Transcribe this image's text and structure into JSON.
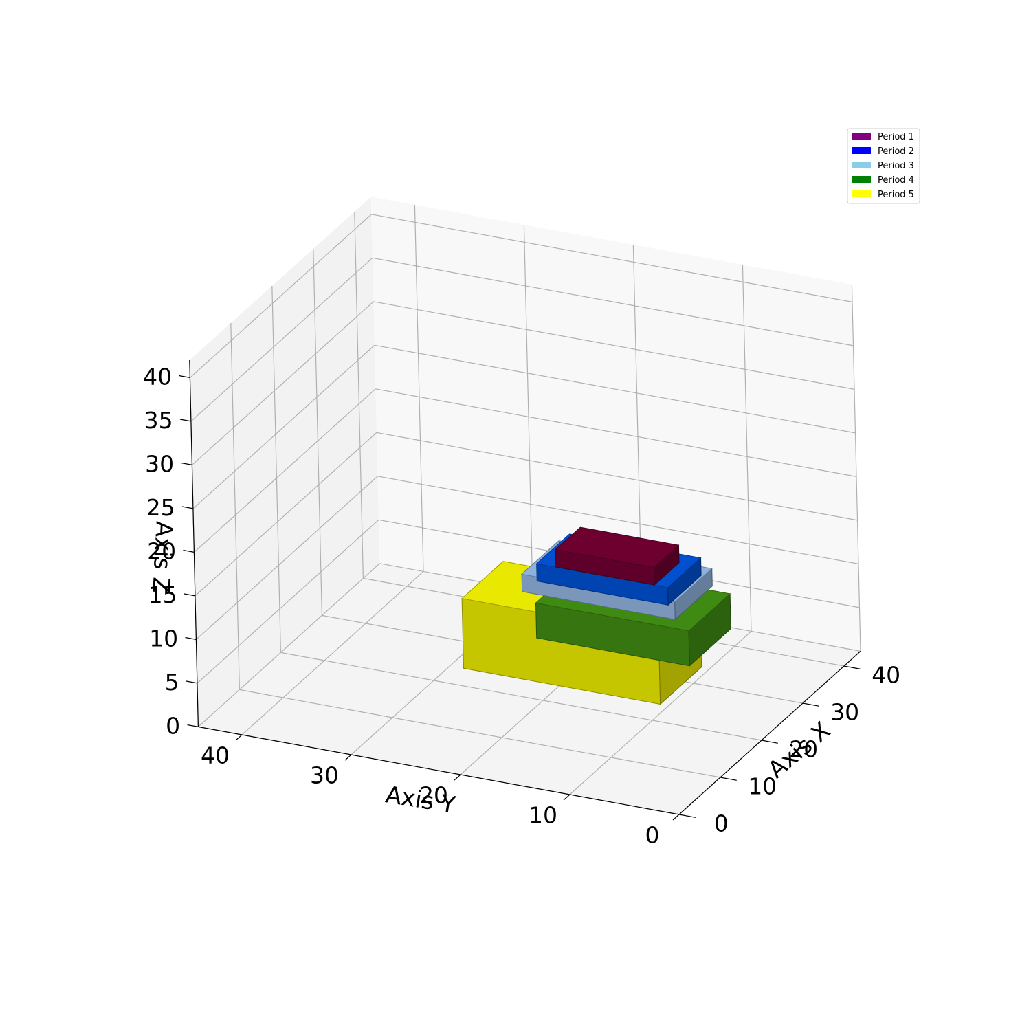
{
  "chart_data": {
    "type": "voxel3d",
    "title": "",
    "xlabel": "Axis X",
    "ylabel": "Axis Y",
    "zlabel": "Axis Z",
    "xlim": [
      0,
      44
    ],
    "ylim": [
      0,
      44
    ],
    "zlim": [
      0,
      42
    ],
    "x_ticks": [
      0,
      10,
      20,
      30,
      40
    ],
    "y_ticks": [
      0,
      10,
      20,
      30,
      40
    ],
    "z_ticks": [
      0,
      5,
      10,
      15,
      20,
      25,
      30,
      35,
      40
    ],
    "grid": true,
    "legend_position": "top-right",
    "legend": [
      {
        "label": "Period 1",
        "color": "#800080"
      },
      {
        "label": "Period 2",
        "color": "#0000ff"
      },
      {
        "label": "Period 3",
        "color": "#87ceeb"
      },
      {
        "label": "Period 4",
        "color": "#008000"
      },
      {
        "label": "Period 5",
        "color": "#ffff00"
      }
    ],
    "voxel_colors": {
      "Period 1": "#6e0030",
      "Period 2": "#0050d0",
      "Period 3": "#8fb2dc",
      "Period 4": "#3f8a12",
      "Period 5": "#e8e800"
    },
    "voxels": [
      {
        "period": "Period 5",
        "x": [
          22,
          32
        ],
        "y": [
          10,
          28
        ],
        "z": [
          1,
          9
        ]
      },
      {
        "period": "Period 4",
        "x": [
          24,
          34
        ],
        "y": [
          8,
          22
        ],
        "z": [
          5,
          9
        ]
      },
      {
        "period": "Period 3",
        "x": [
          26,
          35
        ],
        "y": [
          10,
          24
        ],
        "z": [
          9,
          11
        ]
      },
      {
        "period": "Period 2",
        "x": [
          27,
          35
        ],
        "y": [
          11,
          23
        ],
        "z": [
          10,
          12
        ]
      },
      {
        "period": "Period 1",
        "x": [
          29,
          35
        ],
        "y": [
          13,
          22
        ],
        "z": [
          11,
          13
        ]
      }
    ]
  }
}
